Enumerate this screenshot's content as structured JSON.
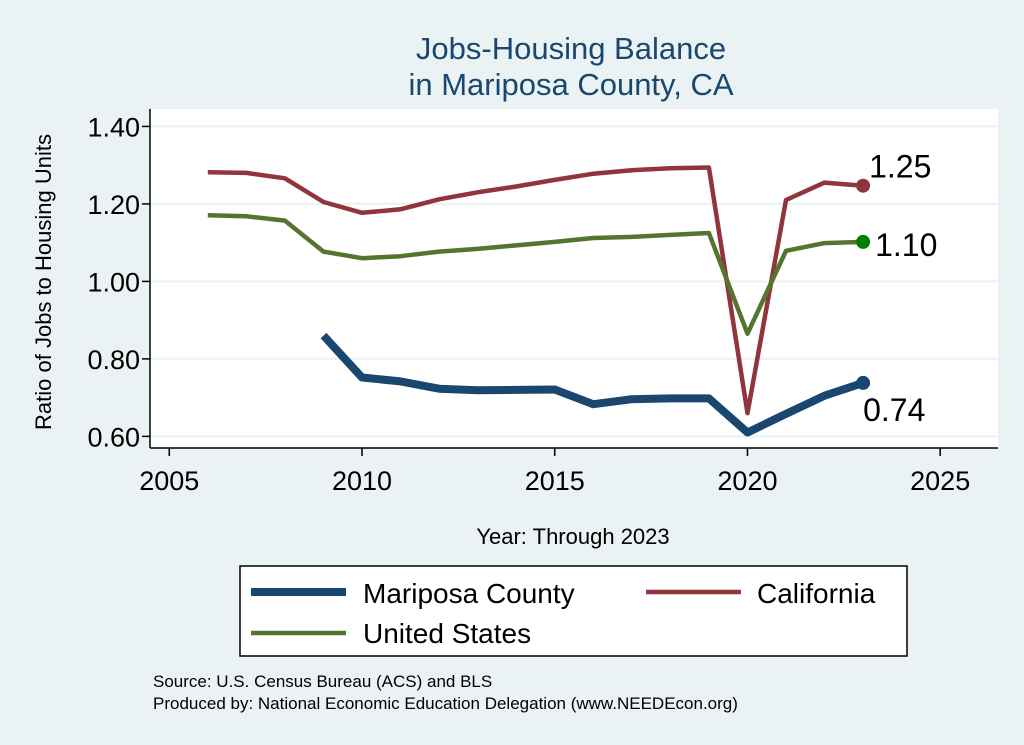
{
  "chart_data": {
    "type": "line",
    "title": [
      "Jobs-Housing Balance",
      "in Mariposa County, CA"
    ],
    "xlabel": "Year: Through 2023",
    "ylabel": "Ratio of Jobs to Housing Units",
    "xlim": [
      2004.5,
      2026.5
    ],
    "ylim": [
      0.57,
      1.445
    ],
    "xticks": [
      2005,
      2010,
      2015,
      2020,
      2025
    ],
    "xtick_labels": [
      "2005",
      "2010",
      "2015",
      "2020",
      "2025"
    ],
    "yticks": [
      0.6,
      0.8,
      1.0,
      1.2,
      1.4
    ],
    "ytick_labels": [
      "0.60",
      "0.80",
      "1.00",
      "1.20",
      "1.40"
    ],
    "grid": "horizontal",
    "legend_position": "bottom",
    "series": [
      {
        "name": "Mariposa County",
        "color": "#1a476f",
        "x": [
          2009,
          2010,
          2011,
          2012,
          2013,
          2014,
          2015,
          2016,
          2017,
          2018,
          2019,
          2020,
          2021,
          2022,
          2023
        ],
        "values": [
          0.86,
          0.752,
          0.742,
          0.723,
          0.719,
          0.72,
          0.721,
          0.683,
          0.696,
          0.698,
          0.698,
          0.61,
          0.658,
          0.705,
          0.738
        ],
        "end_label": "0.74"
      },
      {
        "name": "California",
        "color": "#90353b",
        "x": [
          2006,
          2007,
          2008,
          2009,
          2010,
          2011,
          2012,
          2013,
          2014,
          2015,
          2016,
          2017,
          2018,
          2019,
          2020,
          2021,
          2022,
          2023
        ],
        "values": [
          1.282,
          1.28,
          1.266,
          1.205,
          1.177,
          1.186,
          1.212,
          1.23,
          1.245,
          1.262,
          1.278,
          1.287,
          1.292,
          1.294,
          0.66,
          1.21,
          1.255,
          1.247
        ],
        "end_label": "1.25"
      },
      {
        "name": "United States",
        "color": "#55752f",
        "x": [
          2006,
          2007,
          2008,
          2009,
          2010,
          2011,
          2012,
          2013,
          2014,
          2015,
          2016,
          2017,
          2018,
          2019,
          2020,
          2021,
          2022,
          2023
        ],
        "values": [
          1.171,
          1.168,
          1.157,
          1.077,
          1.06,
          1.065,
          1.077,
          1.084,
          1.093,
          1.102,
          1.112,
          1.115,
          1.12,
          1.125,
          0.865,
          1.079,
          1.099,
          1.102
        ],
        "end_label": "1.10"
      }
    ],
    "end_marker_colors": [
      "#1a476f",
      "#90353b",
      "#008000"
    ],
    "source_lines": [
      "Source: U.S. Census Bureau (ACS) and BLS",
      "Produced by: National Economic Education Delegation (www.NEEDEcon.org)"
    ]
  }
}
